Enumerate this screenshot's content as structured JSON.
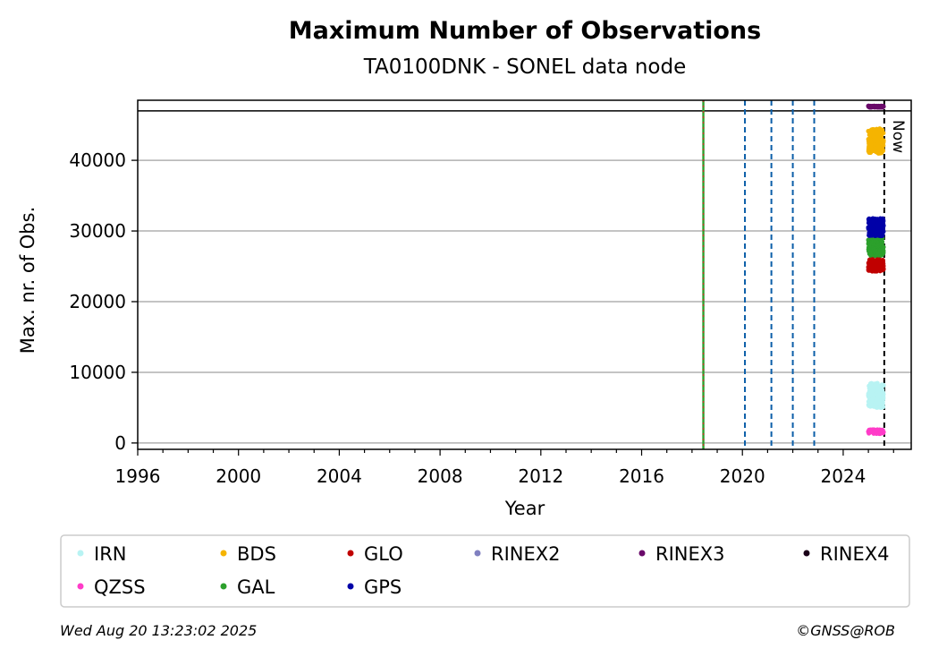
{
  "chart_data": {
    "type": "scatter",
    "title": "Maximum Number of Observations",
    "subtitle": "TA0100DNK - SONEL data node",
    "xlabel": "Year",
    "ylabel": "Max. nr. of Obs.",
    "xlim": [
      1996,
      2026.7
    ],
    "ylim": [
      -900,
      48500
    ],
    "x_ticks": [
      1996,
      2000,
      2004,
      2008,
      2012,
      2016,
      2020,
      2024
    ],
    "y_ticks": [
      0,
      10000,
      20000,
      30000,
      40000
    ],
    "grid": "y",
    "horizontal_line": 47000,
    "vertical_lines": [
      {
        "x": 2018.45,
        "style": "green-red-dashed",
        "color": "#2ca02c"
      },
      {
        "x": 2020.1,
        "style": "dashed",
        "color": "#0b5ea8"
      },
      {
        "x": 2021.15,
        "style": "dashed",
        "color": "#0b5ea8"
      },
      {
        "x": 2022.0,
        "style": "dashed",
        "color": "#0b5ea8"
      },
      {
        "x": 2022.85,
        "style": "dashed",
        "color": "#0b5ea8"
      },
      {
        "x": 2025.63,
        "style": "dashed",
        "color": "#000000",
        "label": "Now"
      }
    ],
    "data_x_range": [
      2025.0,
      2025.6
    ],
    "series": [
      {
        "name": "IRN",
        "color": "#b8f3f3",
        "y_min": 5000,
        "y_max": 8500
      },
      {
        "name": "QZSS",
        "color": "#ff3cc8",
        "y_min": 1300,
        "y_max": 1900
      },
      {
        "name": "BDS",
        "color": "#f5b400",
        "y_min": 41000,
        "y_max": 44500
      },
      {
        "name": "GAL",
        "color": "#2ca02c",
        "y_min": 26500,
        "y_max": 29000
      },
      {
        "name": "GLO",
        "color": "#c00000",
        "y_min": 24300,
        "y_max": 26000
      },
      {
        "name": "GPS",
        "color": "#0000a8",
        "y_min": 29300,
        "y_max": 31800
      },
      {
        "name": "RINEX2",
        "color": "#8080c0",
        "y_min": null,
        "y_max": null
      },
      {
        "name": "RINEX3",
        "color": "#6a0a6a",
        "y_min": 47500,
        "y_max": 47700
      },
      {
        "name": "RINEX4",
        "color": "#1a0018",
        "y_min": null,
        "y_max": null
      }
    ],
    "legend": {
      "placement": "below",
      "rows": [
        [
          "IRN",
          "BDS",
          "GLO",
          "RINEX2",
          "RINEX3",
          "RINEX4"
        ],
        [
          "QZSS",
          "GAL",
          "GPS"
        ]
      ]
    }
  },
  "footer": {
    "timestamp": "Wed Aug 20 13:23:02 2025",
    "copyright": "©GNSS@ROB"
  }
}
